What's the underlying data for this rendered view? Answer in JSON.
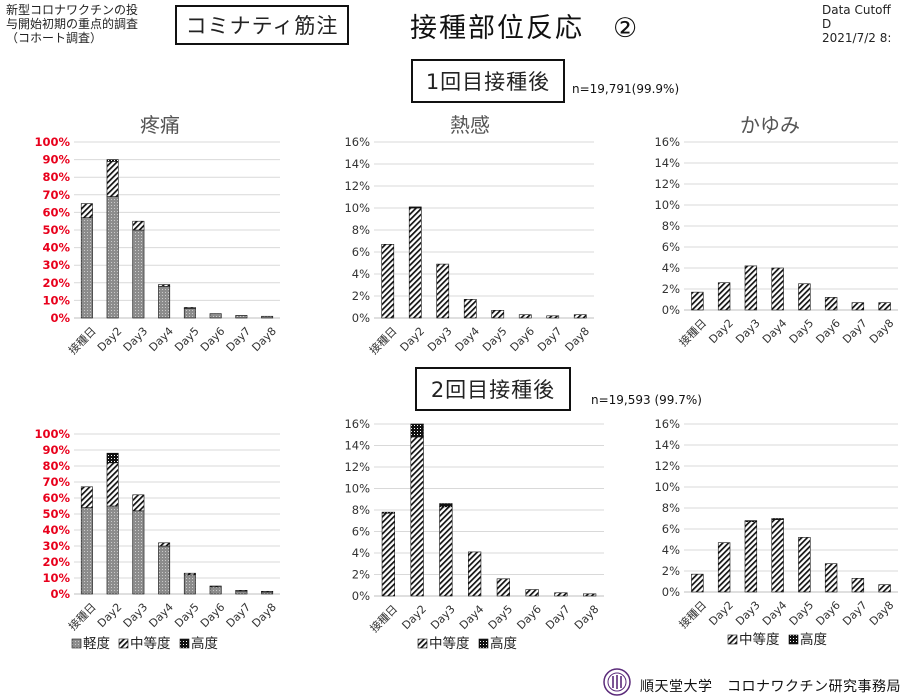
{
  "header": {
    "org_note": "新型コロナワクチンの投\n与開始初期の重点的調査\n（コホート調査）",
    "vaccine": "コミナティ筋注",
    "title": "接種部位反応　②",
    "cutoff": "Data Cutoff D\n2021/7/2 8:"
  },
  "doses": [
    {
      "label": "1回目接種後",
      "n": "n=19,791(99.9%)"
    },
    {
      "label": "2回目接種後",
      "n": "n=19,593 (99.7%)"
    }
  ],
  "legends": {
    "three": [
      "軽度",
      "中等度",
      "高度"
    ],
    "two": [
      "中等度",
      "高度"
    ]
  },
  "footer": "順天堂大学　コロナワクチン研究事務局",
  "colors": {
    "pct_axis_red": "#e8001c",
    "grid": "#d9d9d9",
    "mild_fill": "#8c8c8c"
  },
  "chart_data": [
    {
      "id": "d1-pain",
      "type": "bar",
      "stacked": true,
      "dose": 1,
      "title": "疼痛",
      "categories": [
        "接種日",
        "Day2",
        "Day3",
        "Day4",
        "Day5",
        "Day6",
        "Day7",
        "Day8"
      ],
      "ylim": [
        0,
        100
      ],
      "yticks": [
        "0%",
        "10%",
        "20%",
        "30%",
        "40%",
        "50%",
        "60%",
        "70%",
        "80%",
        "90%",
        "100%"
      ],
      "series": [
        {
          "key": "mild",
          "values": [
            57,
            69,
            50,
            18,
            5.5,
            2.5,
            1.5,
            1
          ]
        },
        {
          "key": "moderate",
          "values": [
            8,
            20,
            5,
            1,
            0.5,
            0,
            0,
            0
          ]
        },
        {
          "key": "severe",
          "values": [
            0,
            1,
            0,
            0,
            0,
            0,
            0,
            0
          ]
        }
      ]
    },
    {
      "id": "d1-heat",
      "type": "bar",
      "stacked": true,
      "dose": 1,
      "title": "熱感",
      "categories": [
        "接種日",
        "Day2",
        "Day3",
        "Day4",
        "Day5",
        "Day6",
        "Day7",
        "Day8"
      ],
      "ylim": [
        0,
        16
      ],
      "yticks": [
        "0%",
        "2%",
        "4%",
        "6%",
        "8%",
        "10%",
        "12%",
        "14%",
        "16%"
      ],
      "series": [
        {
          "key": "moderate",
          "values": [
            6.7,
            10.0,
            4.9,
            1.7,
            0.7,
            0.3,
            0.2,
            0.3
          ]
        },
        {
          "key": "severe",
          "values": [
            0,
            0.1,
            0,
            0,
            0,
            0,
            0,
            0
          ]
        }
      ]
    },
    {
      "id": "d1-itch",
      "type": "bar",
      "stacked": true,
      "dose": 1,
      "title": "かゆみ",
      "categories": [
        "接種日",
        "Day2",
        "Day3",
        "Day4",
        "Day5",
        "Day6",
        "Day7",
        "Day8"
      ],
      "ylim": [
        0,
        16
      ],
      "yticks": [
        "0%",
        "2%",
        "4%",
        "6%",
        "8%",
        "10%",
        "12%",
        "14%",
        "16%"
      ],
      "series": [
        {
          "key": "moderate",
          "values": [
            1.7,
            2.6,
            4.2,
            4.0,
            2.5,
            1.2,
            0.7,
            0.7
          ]
        },
        {
          "key": "severe",
          "values": [
            0,
            0,
            0,
            0,
            0,
            0,
            0,
            0
          ]
        }
      ]
    },
    {
      "id": "d2-pain",
      "type": "bar",
      "stacked": true,
      "dose": 2,
      "title": "",
      "categories": [
        "接種日",
        "Day2",
        "Day3",
        "Day4",
        "Day5",
        "Day6",
        "Day7",
        "Day8"
      ],
      "ylim": [
        0,
        100
      ],
      "yticks": [
        "0%",
        "10%",
        "20%",
        "30%",
        "40%",
        "50%",
        "60%",
        "70%",
        "80%",
        "90%",
        "100%"
      ],
      "legend": "three",
      "series": [
        {
          "key": "mild",
          "values": [
            54,
            55,
            52,
            30,
            12,
            4.5,
            2,
            1.5
          ]
        },
        {
          "key": "moderate",
          "values": [
            13,
            27,
            10,
            2,
            1,
            0.5,
            0.3,
            0.2
          ]
        },
        {
          "key": "severe",
          "values": [
            0,
            6,
            0,
            0,
            0,
            0,
            0,
            0
          ]
        }
      ]
    },
    {
      "id": "d2-heat",
      "type": "bar",
      "stacked": true,
      "dose": 2,
      "title": "",
      "categories": [
        "接種日",
        "Day2",
        "Day3",
        "Day4",
        "Day5",
        "Day6",
        "Day7",
        "Day8"
      ],
      "ylim": [
        0,
        16
      ],
      "yticks": [
        "0%",
        "2%",
        "4%",
        "6%",
        "8%",
        "10%",
        "12%",
        "14%",
        "16%"
      ],
      "legend": "two",
      "series": [
        {
          "key": "moderate",
          "values": [
            7.7,
            14.8,
            8.3,
            4.1,
            1.6,
            0.6,
            0.3,
            0.2
          ]
        },
        {
          "key": "severe",
          "values": [
            0.1,
            1.2,
            0.3,
            0,
            0,
            0,
            0,
            0
          ]
        }
      ]
    },
    {
      "id": "d2-itch",
      "type": "bar",
      "stacked": true,
      "dose": 2,
      "title": "",
      "categories": [
        "接種日",
        "Day2",
        "Day3",
        "Day4",
        "Day5",
        "Day6",
        "Day7",
        "Day8"
      ],
      "ylim": [
        0,
        16
      ],
      "yticks": [
        "0%",
        "2%",
        "4%",
        "6%",
        "8%",
        "10%",
        "12%",
        "14%",
        "16%"
      ],
      "legend": "two",
      "series": [
        {
          "key": "moderate",
          "values": [
            1.7,
            4.7,
            6.7,
            6.9,
            5.2,
            2.7,
            1.3,
            0.7
          ]
        },
        {
          "key": "severe",
          "values": [
            0,
            0,
            0.1,
            0.1,
            0,
            0,
            0,
            0
          ]
        }
      ]
    }
  ]
}
